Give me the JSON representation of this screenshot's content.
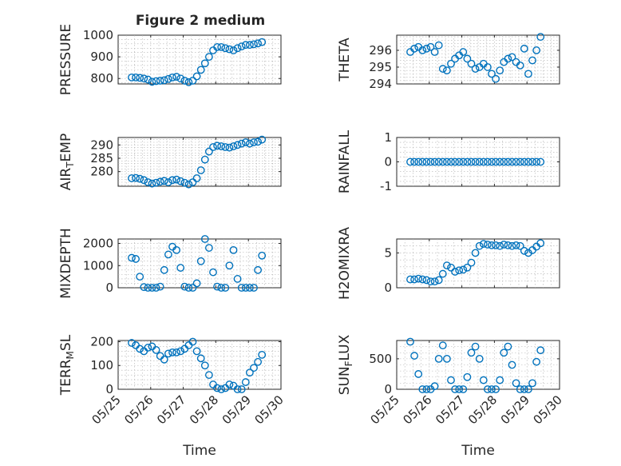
{
  "figure": {
    "title": "Figure 2 medium",
    "marker_color": "#0072bd"
  },
  "chart_data": [
    {
      "type": "scatter",
      "name": "PRESSURE",
      "ylabel": "PRESSURE",
      "ylim": [
        775,
        1000
      ],
      "yticks": [
        800,
        900,
        1000
      ],
      "ytick_labels": [
        "800",
        "900",
        "1000"
      ],
      "x": [
        "05/25 10:00",
        "05/25 13:00",
        "05/25 16:00",
        "05/25 19:00",
        "05/25 22:00",
        "05/26 01:00",
        "05/26 04:00",
        "05/26 07:00",
        "05/26 10:00",
        "05/26 13:00",
        "05/26 16:00",
        "05/26 19:00",
        "05/26 22:00",
        "05/27 01:00",
        "05/27 04:00",
        "05/27 07:00",
        "05/27 10:00",
        "05/27 13:00",
        "05/27 16:00",
        "05/27 19:00",
        "05/27 22:00",
        "05/28 01:00",
        "05/28 04:00",
        "05/28 07:00",
        "05/28 10:00",
        "05/28 13:00",
        "05/28 16:00",
        "05/28 19:00",
        "05/28 22:00",
        "05/29 01:00",
        "05/29 04:00",
        "05/29 07:00",
        "05/29 10:00"
      ],
      "y": [
        805,
        805,
        803,
        800,
        795,
        785,
        788,
        790,
        792,
        798,
        805,
        808,
        800,
        790,
        783,
        790,
        810,
        840,
        870,
        900,
        930,
        945,
        945,
        940,
        935,
        930,
        940,
        948,
        955,
        955,
        958,
        962,
        968
      ]
    },
    {
      "type": "scatter",
      "name": "THETA",
      "ylabel": "THETA",
      "ylim": [
        294,
        296.9
      ],
      "yticks": [
        294,
        295,
        296
      ],
      "ytick_labels": [
        "294",
        "295",
        "296"
      ],
      "x": [
        "05/25 10:00",
        "05/25 13:00",
        "05/25 16:00",
        "05/25 19:00",
        "05/25 22:00",
        "05/26 01:00",
        "05/26 04:00",
        "05/26 07:00",
        "05/26 10:00",
        "05/26 13:00",
        "05/26 16:00",
        "05/26 19:00",
        "05/26 22:00",
        "05/27 01:00",
        "05/27 04:00",
        "05/27 07:00",
        "05/27 10:00",
        "05/27 13:00",
        "05/27 16:00",
        "05/27 19:00",
        "05/27 22:00",
        "05/28 01:00",
        "05/28 04:00",
        "05/28 07:00",
        "05/28 10:00",
        "05/28 13:00",
        "05/28 16:00",
        "05/28 19:00",
        "05/28 22:00",
        "05/29 01:00",
        "05/29 04:00",
        "05/29 07:00",
        "05/29 10:00"
      ],
      "y": [
        295.9,
        296.1,
        296.2,
        296.0,
        296.1,
        296.2,
        295.9,
        296.3,
        294.9,
        294.8,
        295.2,
        295.5,
        295.7,
        295.9,
        295.5,
        295.2,
        294.9,
        295.0,
        295.2,
        295.0,
        294.6,
        294.3,
        294.8,
        295.3,
        295.5,
        295.6,
        295.3,
        295.1,
        296.1,
        294.6,
        295.4,
        296.0,
        296.8
      ]
    },
    {
      "type": "scatter",
      "name": "AIR_TEMP",
      "ylabel": "AIR_TEMP",
      "ylim": [
        274.5,
        292.8
      ],
      "yticks": [
        280,
        285,
        290
      ],
      "ytick_labels": [
        "280",
        "285",
        "290"
      ],
      "x": [
        "05/25 10:00",
        "05/25 13:00",
        "05/25 16:00",
        "05/25 19:00",
        "05/25 22:00",
        "05/26 01:00",
        "05/26 04:00",
        "05/26 07:00",
        "05/26 10:00",
        "05/26 13:00",
        "05/26 16:00",
        "05/26 19:00",
        "05/26 22:00",
        "05/27 01:00",
        "05/27 04:00",
        "05/27 07:00",
        "05/27 10:00",
        "05/27 13:00",
        "05/27 16:00",
        "05/27 19:00",
        "05/27 22:00",
        "05/28 01:00",
        "05/28 04:00",
        "05/28 07:00",
        "05/28 10:00",
        "05/28 13:00",
        "05/28 16:00",
        "05/28 19:00",
        "05/28 22:00",
        "05/29 01:00",
        "05/29 04:00",
        "05/29 07:00",
        "05/29 10:00"
      ],
      "y": [
        277.5,
        277.6,
        277.3,
        276.8,
        276.0,
        275.5,
        275.8,
        276.2,
        276.5,
        276.0,
        276.8,
        277.0,
        276.4,
        275.8,
        275.2,
        276.0,
        277.5,
        280.5,
        284.5,
        287.5,
        289.2,
        289.7,
        289.5,
        289.2,
        289.0,
        289.5,
        290.0,
        290.5,
        291.0,
        290.5,
        291.0,
        291.2,
        292.0
      ]
    },
    {
      "type": "scatter",
      "name": "RAINFALL",
      "ylabel": "RAINFALL",
      "ylim": [
        -1,
        1
      ],
      "yticks": [
        -1,
        0,
        1
      ],
      "ytick_labels": [
        "-1",
        "0",
        "1"
      ],
      "x": [
        "05/25 10:00",
        "05/25 13:00",
        "05/25 16:00",
        "05/25 19:00",
        "05/25 22:00",
        "05/26 01:00",
        "05/26 04:00",
        "05/26 07:00",
        "05/26 10:00",
        "05/26 13:00",
        "05/26 16:00",
        "05/26 19:00",
        "05/26 22:00",
        "05/27 01:00",
        "05/27 04:00",
        "05/27 07:00",
        "05/27 10:00",
        "05/27 13:00",
        "05/27 16:00",
        "05/27 19:00",
        "05/27 22:00",
        "05/28 01:00",
        "05/28 04:00",
        "05/28 07:00",
        "05/28 10:00",
        "05/28 13:00",
        "05/28 16:00",
        "05/28 19:00",
        "05/28 22:00",
        "05/29 01:00",
        "05/29 04:00",
        "05/29 07:00",
        "05/29 10:00"
      ],
      "y": [
        0,
        0,
        0,
        0,
        0,
        0,
        0,
        0,
        0,
        0,
        0,
        0,
        0,
        0,
        0,
        0,
        0,
        0,
        0,
        0,
        0,
        0,
        0,
        0,
        0,
        0,
        0,
        0,
        0,
        0,
        0,
        0,
        0
      ]
    },
    {
      "type": "scatter",
      "name": "MIXDEPTH",
      "ylabel": "MIXDEPTH",
      "ylim": [
        0,
        2200
      ],
      "yticks": [
        0,
        1000,
        2000
      ],
      "ytick_labels": [
        "0",
        "1000",
        "2000"
      ],
      "x": [
        "05/25 10:00",
        "05/25 13:00",
        "05/25 16:00",
        "05/25 19:00",
        "05/25 22:00",
        "05/26 01:00",
        "05/26 04:00",
        "05/26 07:00",
        "05/26 10:00",
        "05/26 13:00",
        "05/26 16:00",
        "05/26 19:00",
        "05/26 22:00",
        "05/27 01:00",
        "05/27 04:00",
        "05/27 07:00",
        "05/27 10:00",
        "05/27 13:00",
        "05/27 16:00",
        "05/27 19:00",
        "05/27 22:00",
        "05/28 01:00",
        "05/28 04:00",
        "05/28 07:00",
        "05/28 10:00",
        "05/28 13:00",
        "05/28 16:00",
        "05/28 19:00",
        "05/28 22:00",
        "05/29 01:00",
        "05/29 04:00",
        "05/29 07:00",
        "05/29 10:00"
      ],
      "y": [
        1350,
        1300,
        500,
        30,
        0,
        0,
        0,
        50,
        800,
        1500,
        1850,
        1700,
        900,
        50,
        0,
        0,
        200,
        1200,
        2200,
        1800,
        700,
        50,
        0,
        0,
        1000,
        1700,
        400,
        0,
        0,
        0,
        0,
        800,
        1450
      ]
    },
    {
      "type": "scatter",
      "name": "H2OMIXRA",
      "ylabel": "H2OMIXRA",
      "ylim": [
        0,
        7
      ],
      "yticks": [
        0,
        5
      ],
      "ytick_labels": [
        "0",
        "5"
      ],
      "x": [
        "05/25 10:00",
        "05/25 13:00",
        "05/25 16:00",
        "05/25 19:00",
        "05/25 22:00",
        "05/26 01:00",
        "05/26 04:00",
        "05/26 07:00",
        "05/26 10:00",
        "05/26 13:00",
        "05/26 16:00",
        "05/26 19:00",
        "05/26 22:00",
        "05/27 01:00",
        "05/27 04:00",
        "05/27 07:00",
        "05/27 10:00",
        "05/27 13:00",
        "05/27 16:00",
        "05/27 19:00",
        "05/27 22:00",
        "05/28 01:00",
        "05/28 04:00",
        "05/28 07:00",
        "05/28 10:00",
        "05/28 13:00",
        "05/28 16:00",
        "05/28 19:00",
        "05/28 22:00",
        "05/29 01:00",
        "05/29 04:00",
        "05/29 07:00",
        "05/29 10:00"
      ],
      "y": [
        1.2,
        1.2,
        1.3,
        1.2,
        1.1,
        0.9,
        0.9,
        1.1,
        2.0,
        3.2,
        2.9,
        2.3,
        2.5,
        2.6,
        2.9,
        3.6,
        5.0,
        6.0,
        6.3,
        6.2,
        6.1,
        6.1,
        6.0,
        6.2,
        6.1,
        6.0,
        6.1,
        6.0,
        5.3,
        5.0,
        5.4,
        5.9,
        6.4
      ]
    },
    {
      "type": "scatter",
      "name": "TERR_MSL",
      "ylabel": "TERR_MSL",
      "ylim": [
        0,
        205
      ],
      "yticks": [
        0,
        100,
        200
      ],
      "ytick_labels": [
        "0",
        "100",
        "200"
      ],
      "x": [
        "05/25 10:00",
        "05/25 13:00",
        "05/25 16:00",
        "05/25 19:00",
        "05/25 22:00",
        "05/26 01:00",
        "05/26 04:00",
        "05/26 07:00",
        "05/26 10:00",
        "05/26 13:00",
        "05/26 16:00",
        "05/26 19:00",
        "05/26 22:00",
        "05/27 01:00",
        "05/27 04:00",
        "05/27 07:00",
        "05/27 10:00",
        "05/27 13:00",
        "05/27 16:00",
        "05/27 19:00",
        "05/27 22:00",
        "05/28 01:00",
        "05/28 04:00",
        "05/28 07:00",
        "05/28 10:00",
        "05/28 13:00",
        "05/28 16:00",
        "05/28 19:00",
        "05/28 22:00",
        "05/29 01:00",
        "05/29 04:00",
        "05/29 07:00",
        "05/29 10:00"
      ],
      "y": [
        195,
        185,
        170,
        160,
        175,
        180,
        165,
        140,
        125,
        150,
        155,
        155,
        160,
        170,
        185,
        200,
        160,
        130,
        100,
        60,
        20,
        5,
        0,
        5,
        20,
        15,
        0,
        0,
        30,
        70,
        90,
        115,
        145
      ]
    },
    {
      "type": "scatter",
      "name": "SUN_FLUX",
      "ylabel": "SUN_FLUX",
      "ylim": [
        0,
        800
      ],
      "yticks": [
        0,
        500
      ],
      "ytick_labels": [
        "0",
        "500"
      ],
      "x": [
        "05/25 10:00",
        "05/25 13:00",
        "05/25 16:00",
        "05/25 19:00",
        "05/25 22:00",
        "05/26 01:00",
        "05/26 04:00",
        "05/26 07:00",
        "05/26 10:00",
        "05/26 13:00",
        "05/26 16:00",
        "05/26 19:00",
        "05/26 22:00",
        "05/27 01:00",
        "05/27 04:00",
        "05/27 07:00",
        "05/27 10:00",
        "05/27 13:00",
        "05/27 16:00",
        "05/27 19:00",
        "05/27 22:00",
        "05/28 01:00",
        "05/28 04:00",
        "05/28 07:00",
        "05/28 10:00",
        "05/28 13:00",
        "05/28 16:00",
        "05/28 19:00",
        "05/28 22:00",
        "05/29 01:00",
        "05/29 04:00",
        "05/29 07:00",
        "05/29 10:00"
      ],
      "y": [
        780,
        550,
        250,
        0,
        0,
        0,
        50,
        500,
        720,
        500,
        150,
        0,
        0,
        0,
        200,
        600,
        700,
        500,
        150,
        0,
        0,
        0,
        150,
        600,
        700,
        400,
        100,
        0,
        0,
        0,
        100,
        450,
        640
      ]
    }
  ],
  "x_axis": {
    "ticks": [
      "05/25 00:00",
      "05/26 00:00",
      "05/27 00:00",
      "05/28 00:00",
      "05/29 00:00",
      "05/30 00:00"
    ],
    "tick_labels": [
      "05/25",
      "05/26",
      "05/27",
      "05/28",
      "05/29",
      "05/30"
    ],
    "xlabel": "Time"
  }
}
